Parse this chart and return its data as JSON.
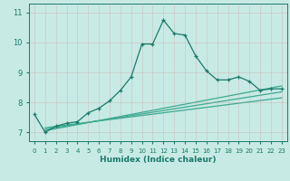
{
  "xlabel": "Humidex (Indice chaleur)",
  "xlim": [
    -0.5,
    23.5
  ],
  "ylim": [
    6.7,
    11.3
  ],
  "yticks": [
    7,
    8,
    9,
    10,
    11
  ],
  "xticks": [
    0,
    1,
    2,
    3,
    4,
    5,
    6,
    7,
    8,
    9,
    10,
    11,
    12,
    13,
    14,
    15,
    16,
    17,
    18,
    19,
    20,
    21,
    22,
    23
  ],
  "bg_color": "#c8eae4",
  "grid_color": "#a8d4ce",
  "line_color_main": "#1a7a6a",
  "line_color_ref": "#3aaa90",
  "series1_x": [
    0,
    1,
    2,
    3,
    4,
    5,
    6,
    7,
    8,
    9,
    10,
    11,
    12,
    13,
    14,
    15,
    16,
    17,
    18,
    19,
    20,
    21,
    22,
    23
  ],
  "series1_y": [
    7.6,
    7.0,
    7.2,
    7.3,
    7.35,
    7.65,
    7.8,
    8.05,
    8.4,
    8.85,
    9.95,
    9.95,
    10.75,
    10.3,
    10.25,
    9.55,
    9.05,
    8.75,
    8.75,
    8.85,
    8.7,
    8.4,
    8.45,
    8.45
  ],
  "ref_lines": [
    {
      "x": [
        1,
        23
      ],
      "y": [
        7.05,
        8.55
      ]
    },
    {
      "x": [
        1,
        23
      ],
      "y": [
        7.1,
        8.35
      ]
    },
    {
      "x": [
        1,
        23
      ],
      "y": [
        7.15,
        8.15
      ]
    }
  ]
}
